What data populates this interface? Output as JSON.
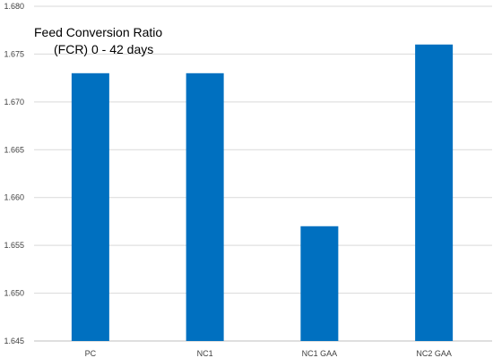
{
  "chart_data": {
    "type": "bar",
    "title_lines": [
      "Feed Conversion Ratio",
      "(FCR) 0 - 42 days"
    ],
    "categories": [
      "PC",
      "NC1",
      "NC1 GAA",
      "NC2 GAA"
    ],
    "values": [
      1.673,
      1.673,
      1.657,
      1.676
    ],
    "ylim": [
      1.645,
      1.68
    ],
    "yticks": [
      "1.645",
      "1.650",
      "1.655",
      "1.660",
      "1.665",
      "1.670",
      "1.675",
      "1.680"
    ],
    "xlabel": "",
    "ylabel": "",
    "grid": true,
    "legend": "none",
    "colors": {
      "bar": "#0070C0",
      "grid": "#D9D9D9",
      "axis": "#BFBFBF"
    }
  }
}
